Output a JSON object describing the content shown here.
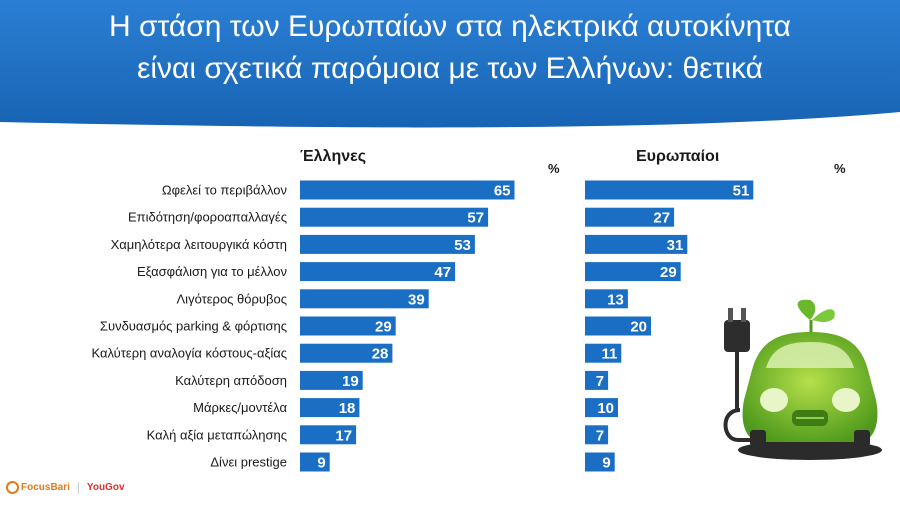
{
  "title": {
    "line1": "Η στάση των Ευρωπαίων στα ηλεκτρικά αυτοκίνητα",
    "line2": "είναι σχετικά παρόμοια με των Ελλήνων: θετικά"
  },
  "colors": {
    "banner": "#1c6cbf",
    "bar": "#1a6fc4",
    "text": "#1a1a1a"
  },
  "chart_data": {
    "type": "bar",
    "orientation": "horizontal",
    "unit": "%",
    "categories": [
      "Ωφελεί το περιβάλλον",
      "Επιδότηση/φοροαπαλλαγές",
      "Χαμηλότερα λειτουργικά κόστη",
      "Εξασφάλιση για το μέλλον",
      "Λιγότερος θόρυβος",
      "Συνδυασμός parking & φόρτισης",
      "Καλύτερη αναλογία κόστους-αξίας",
      "Καλύτερη απόδοση",
      "Μάρκες/μοντέλα",
      "Καλή αξία μεταπώλησης",
      "Δίνει prestige"
    ],
    "series": [
      {
        "name": "Έλληνες",
        "values": [
          65,
          57,
          53,
          47,
          39,
          29,
          28,
          19,
          18,
          17,
          9
        ]
      },
      {
        "name": "Ευρωπαίοι",
        "values": [
          51,
          27,
          31,
          29,
          13,
          20,
          11,
          7,
          10,
          7,
          9
        ]
      }
    ],
    "xlim": [
      0,
      100
    ],
    "data_labels": true
  },
  "logos": {
    "focus": "FocusBari",
    "yougov": "YouGov"
  },
  "icons": {
    "illustration": "green-electric-car-icon",
    "focus_mark": "focus-bari-logo-icon"
  }
}
